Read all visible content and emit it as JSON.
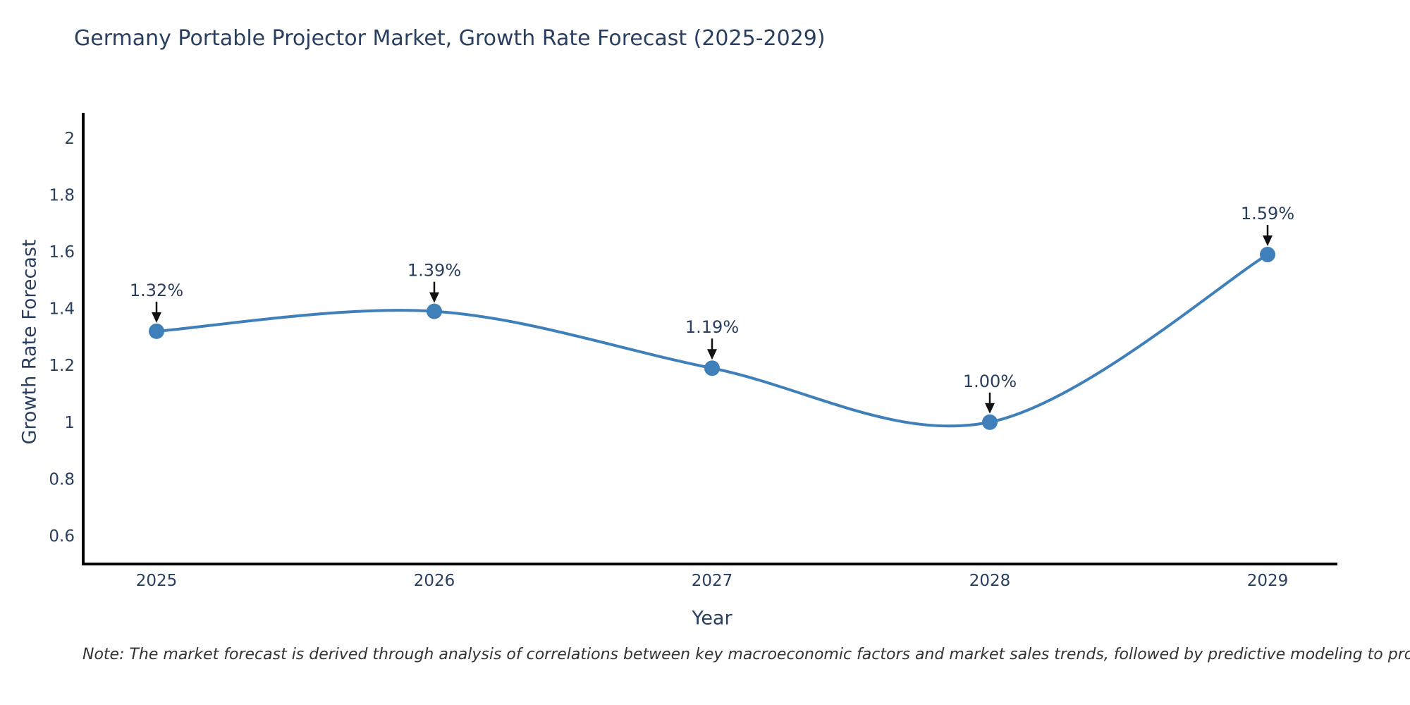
{
  "chart": {
    "title": "Germany Portable Projector Market, Growth Rate Forecast (2025-2029)",
    "xlabel": "Year",
    "ylabel": "Growth Rate Forecast",
    "note": "Note: The market forecast is derived through analysis of correlations between key macroeconomic factors and market sales trends, followed by predictive modeling to project future sales"
  },
  "chart_data": {
    "type": "line",
    "title": "Germany Portable Projector Market, Growth Rate Forecast (2025-2029)",
    "xlabel": "Year",
    "ylabel": "Growth Rate Forecast",
    "categories": [
      "2025",
      "2026",
      "2027",
      "2028",
      "2029"
    ],
    "values": [
      1.32,
      1.39,
      1.19,
      1.0,
      1.59
    ],
    "point_labels": [
      "1.32%",
      "1.39%",
      "1.19%",
      "1.00%",
      "1.59%"
    ],
    "yticks": [
      0.6,
      0.8,
      1,
      1.2,
      1.4,
      1.6,
      1.8,
      2
    ],
    "ylim": [
      0.52,
      2.09
    ],
    "grid": false,
    "legend": false,
    "smooth": true,
    "line_color": "#3f7fba",
    "marker_color": "#3f7fba",
    "axis_color": "#000000",
    "text_color": "#2a3f5f",
    "annotation_arrow_color": "#111111"
  }
}
